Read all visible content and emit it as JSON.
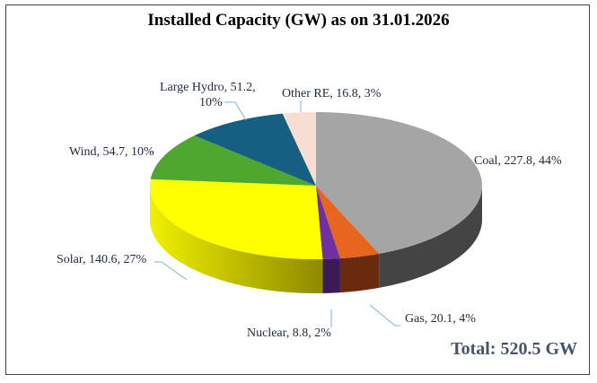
{
  "chart_data": {
    "type": "pie",
    "title": "Installed Capacity (GW) as on 31.01.2026",
    "total_label": "Total: 520.5 GW",
    "slices": [
      {
        "name": "Coal",
        "value": 227.8,
        "percent": "44%",
        "label": "Coal, 227.8, 44%",
        "color": "#a5a5a5",
        "side": "#444444"
      },
      {
        "name": "Gas",
        "value": 20.1,
        "percent": "4%",
        "label": "Gas, 20.1, 4%",
        "color": "#e8651f",
        "side": "#6b2a0e"
      },
      {
        "name": "Nuclear",
        "value": 8.8,
        "percent": "2%",
        "label": "Nuclear, 8.8, 2%",
        "color": "#7030a0",
        "side": "#3c1a55"
      },
      {
        "name": "Solar",
        "value": 140.6,
        "percent": "27%",
        "label": "Solar, 140.6, 27%",
        "color": "#ffff00",
        "side": "#c8c800"
      },
      {
        "name": "Wind",
        "value": 54.7,
        "percent": "10%",
        "label": "Wind, 54.7, 10%",
        "color": "#4ea72e",
        "side": "#2f6a1b"
      },
      {
        "name": "Large Hydro",
        "value": 51.2,
        "percent": "10%",
        "label_line1": "Large Hydro, 51.2,",
        "label_line2": "10%",
        "color": "#156082",
        "side": "#0b3448"
      },
      {
        "name": "Other RE",
        "value": 16.8,
        "percent": "3%",
        "label": "Other RE, 16.8, 3%",
        "color": "#f8ddd3",
        "side": "#c9a89b"
      }
    ],
    "style": "3d"
  }
}
